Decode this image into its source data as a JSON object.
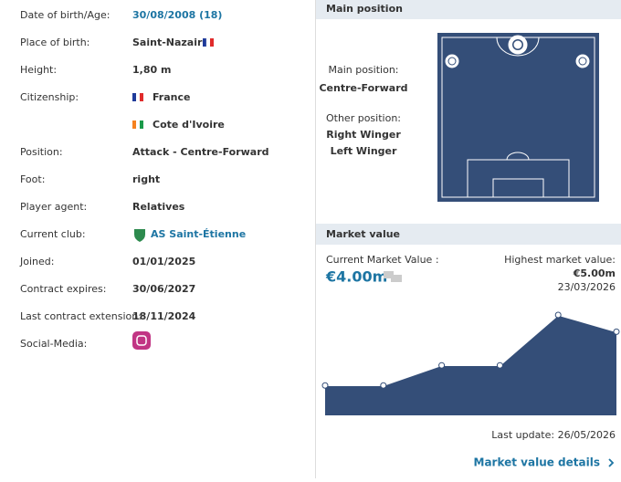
{
  "profile": {
    "rows": [
      {
        "label": "Date of birth/Age:",
        "value": "30/08/2008 (18)"
      },
      {
        "label": "Place of birth:",
        "value": "Saint-Nazaire"
      },
      {
        "label": "Height:",
        "value": "1,80 m"
      },
      {
        "label": "Citizenship:",
        "values": [
          "France",
          "Cote d'Ivoire"
        ]
      },
      {
        "label": "Position:",
        "value": "Attack - Centre-Forward"
      },
      {
        "label": "Foot:",
        "value": "right"
      },
      {
        "label": "Player agent:",
        "value": "Relatives"
      },
      {
        "label": "Current club:",
        "value": "AS Saint-Étienne"
      },
      {
        "label": "Joined:",
        "value": "01/01/2025"
      },
      {
        "label": "Contract expires:",
        "value": "30/06/2027"
      },
      {
        "label": "Last contract extension:",
        "value": "18/11/2024"
      },
      {
        "label": "Social-Media:"
      }
    ]
  },
  "main_position": {
    "title": "Main position",
    "main_label": "Main position:",
    "main": "Centre-Forward",
    "other_label": "Other position:",
    "others": [
      "Right Winger",
      "Left Winger"
    ]
  },
  "market_value": {
    "title": "Market value",
    "current_label": "Current Market Value :",
    "current": "€4.00m",
    "highest_label": "Highest market value:",
    "highest": "€5.00m",
    "highest_date": "23/03/2026",
    "last_update": "Last update: 26/05/2026",
    "details_link": "Market value details",
    "chart": {
      "type": "area",
      "values": [
        0.8,
        0.8,
        2,
        2,
        5,
        4
      ],
      "color": "#344e78"
    }
  }
}
